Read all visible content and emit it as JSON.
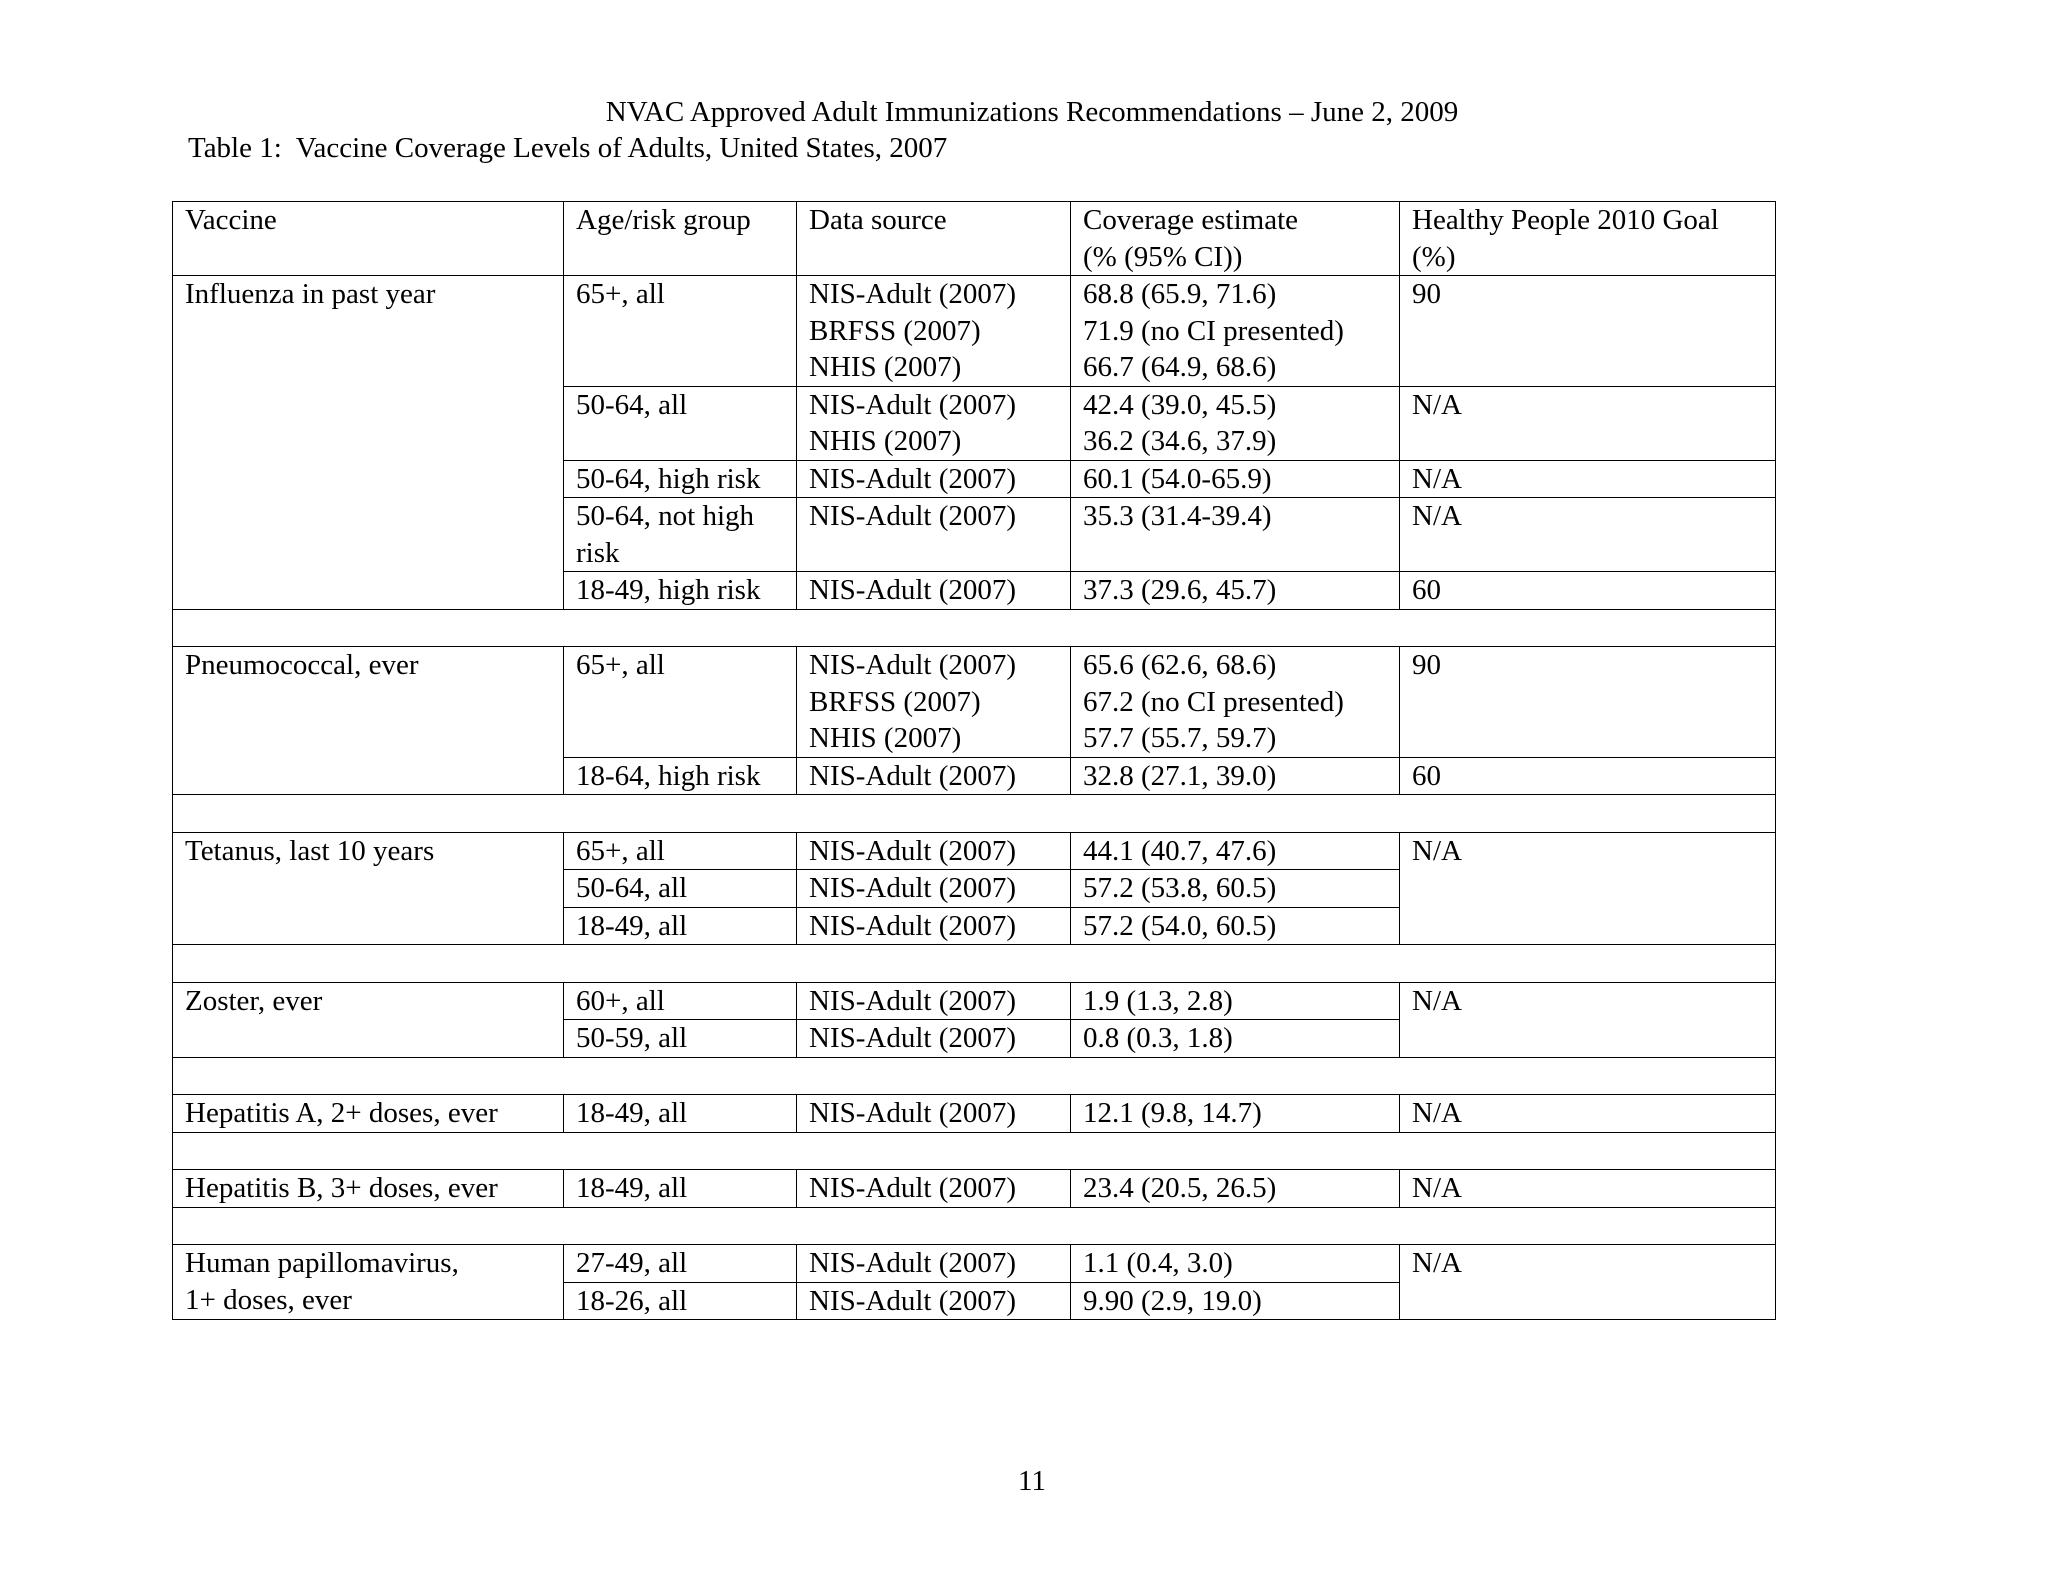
{
  "page_header": "NVAC Approved Adult Immunizations Recommendations – June 2, 2009",
  "table_title": "Table 1:  Vaccine Coverage Levels of Adults, United States, 2007",
  "table": {
    "headers": [
      "Vaccine",
      "Age/risk group",
      "Data source",
      "Coverage estimate\n(% (95% CI))",
      "Healthy People 2010 Goal\n(%)"
    ],
    "groups": [
      {
        "vaccine": "Influenza in past year",
        "rows": [
          {
            "age": "65+, all",
            "source": "NIS-Adult (2007)\nBRFSS (2007)\nNHIS (2007)",
            "estimate": "68.8 (65.9, 71.6)\n71.9 (no CI presented)\n66.7 (64.9, 68.6)",
            "goal": "90"
          },
          {
            "age": "50-64, all",
            "source": "NIS-Adult (2007)\nNHIS (2007)",
            "estimate": "42.4 (39.0, 45.5)\n36.2 (34.6, 37.9)",
            "goal": "N/A"
          },
          {
            "age": "50-64, high risk",
            "source": "NIS-Adult (2007)",
            "estimate": "60.1 (54.0-65.9)",
            "goal": "N/A"
          },
          {
            "age": "50-64, not high\nrisk",
            "source": "NIS-Adult (2007)",
            "estimate": "35.3 (31.4-39.4)",
            "goal": "N/A"
          },
          {
            "age": "18-49, high risk",
            "source": "NIS-Adult (2007)",
            "estimate": "37.3 (29.6, 45.7)",
            "goal": "60"
          }
        ]
      },
      {
        "vaccine": "Pneumococcal, ever",
        "rows": [
          {
            "age": "65+, all",
            "source": "NIS-Adult (2007)\nBRFSS (2007)\nNHIS (2007)",
            "estimate": "65.6 (62.6, 68.6)\n67.2 (no CI presented)\n57.7 (55.7, 59.7)",
            "goal": "90"
          },
          {
            "age": "18-64, high risk",
            "source": "NIS-Adult (2007)",
            "estimate": "32.8 (27.1, 39.0)",
            "goal": "60"
          }
        ]
      },
      {
        "vaccine": "Tetanus, last 10 years",
        "goal": "N/A",
        "rows": [
          {
            "age": "65+, all",
            "source": "NIS-Adult (2007)",
            "estimate": "44.1 (40.7, 47.6)"
          },
          {
            "age": "50-64, all",
            "source": "NIS-Adult (2007)",
            "estimate": "57.2 (53.8, 60.5)"
          },
          {
            "age": "18-49, all",
            "source": "NIS-Adult (2007)",
            "estimate": "57.2 (54.0, 60.5)"
          }
        ]
      },
      {
        "vaccine": "Zoster, ever",
        "goal": "N/A",
        "rows": [
          {
            "age": "60+, all",
            "source": "NIS-Adult (2007)",
            "estimate": "1.9 (1.3, 2.8)"
          },
          {
            "age": "50-59, all",
            "source": "NIS-Adult (2007)",
            "estimate": "0.8 (0.3, 1.8)"
          }
        ]
      },
      {
        "vaccine": "Hepatitis A, 2+ doses, ever",
        "rows": [
          {
            "age": "18-49, all",
            "source": "NIS-Adult (2007)",
            "estimate": "12.1 (9.8, 14.7)",
            "goal": "N/A"
          }
        ]
      },
      {
        "vaccine": "Hepatitis B, 3+ doses, ever",
        "rows": [
          {
            "age": "18-49, all",
            "source": "NIS-Adult (2007)",
            "estimate": "23.4 (20.5, 26.5)",
            "goal": "N/A"
          }
        ]
      },
      {
        "vaccine": "Human papillomavirus,\n1+ doses, ever",
        "goal": "N/A",
        "rows": [
          {
            "age": "27-49, all",
            "source": "NIS-Adult (2007)",
            "estimate": "1.1 (0.4, 3.0)"
          },
          {
            "age": "18-26, all",
            "source": "NIS-Adult (2007)",
            "estimate": "9.90 (2.9, 19.0)"
          }
        ]
      }
    ]
  },
  "page_number": "11"
}
